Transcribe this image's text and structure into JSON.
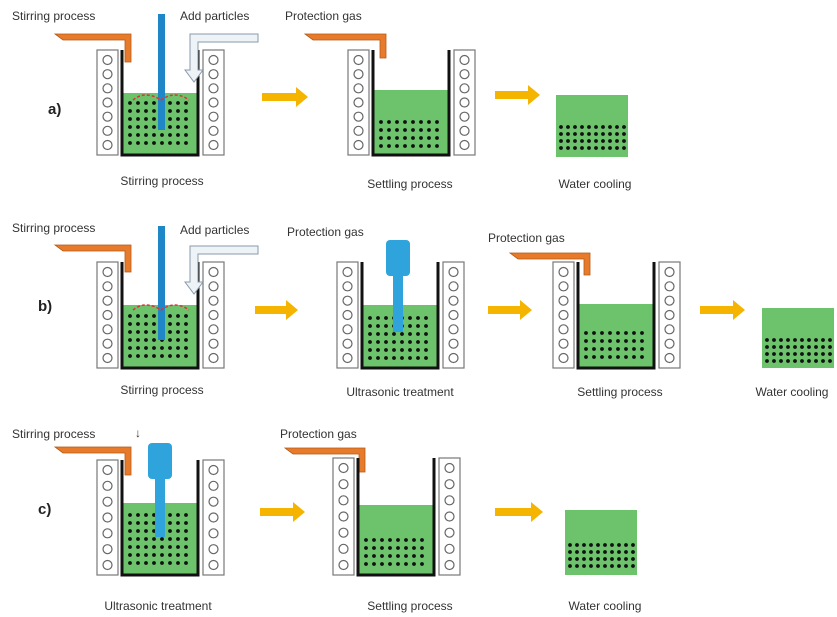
{
  "rows": [
    {
      "label": "a)",
      "top_labels": [
        "Stirring process",
        "Add particles",
        "Protection gas"
      ],
      "captions": [
        "Stirring process",
        "Settling process",
        "Water cooling"
      ]
    },
    {
      "label": "b)",
      "top_labels": [
        "Stirring process",
        "Add particles",
        "Protection gas",
        "Protection gas"
      ],
      "captions": [
        "Stirring process",
        "Ultrasonic treatment",
        "Settling process",
        "Water cooling"
      ]
    },
    {
      "label": "c)",
      "top_labels": [
        "Stirring process",
        "Protection gas"
      ],
      "captions": [
        "Ultrasonic treatment",
        "Settling process",
        "Water cooling"
      ]
    }
  ]
}
